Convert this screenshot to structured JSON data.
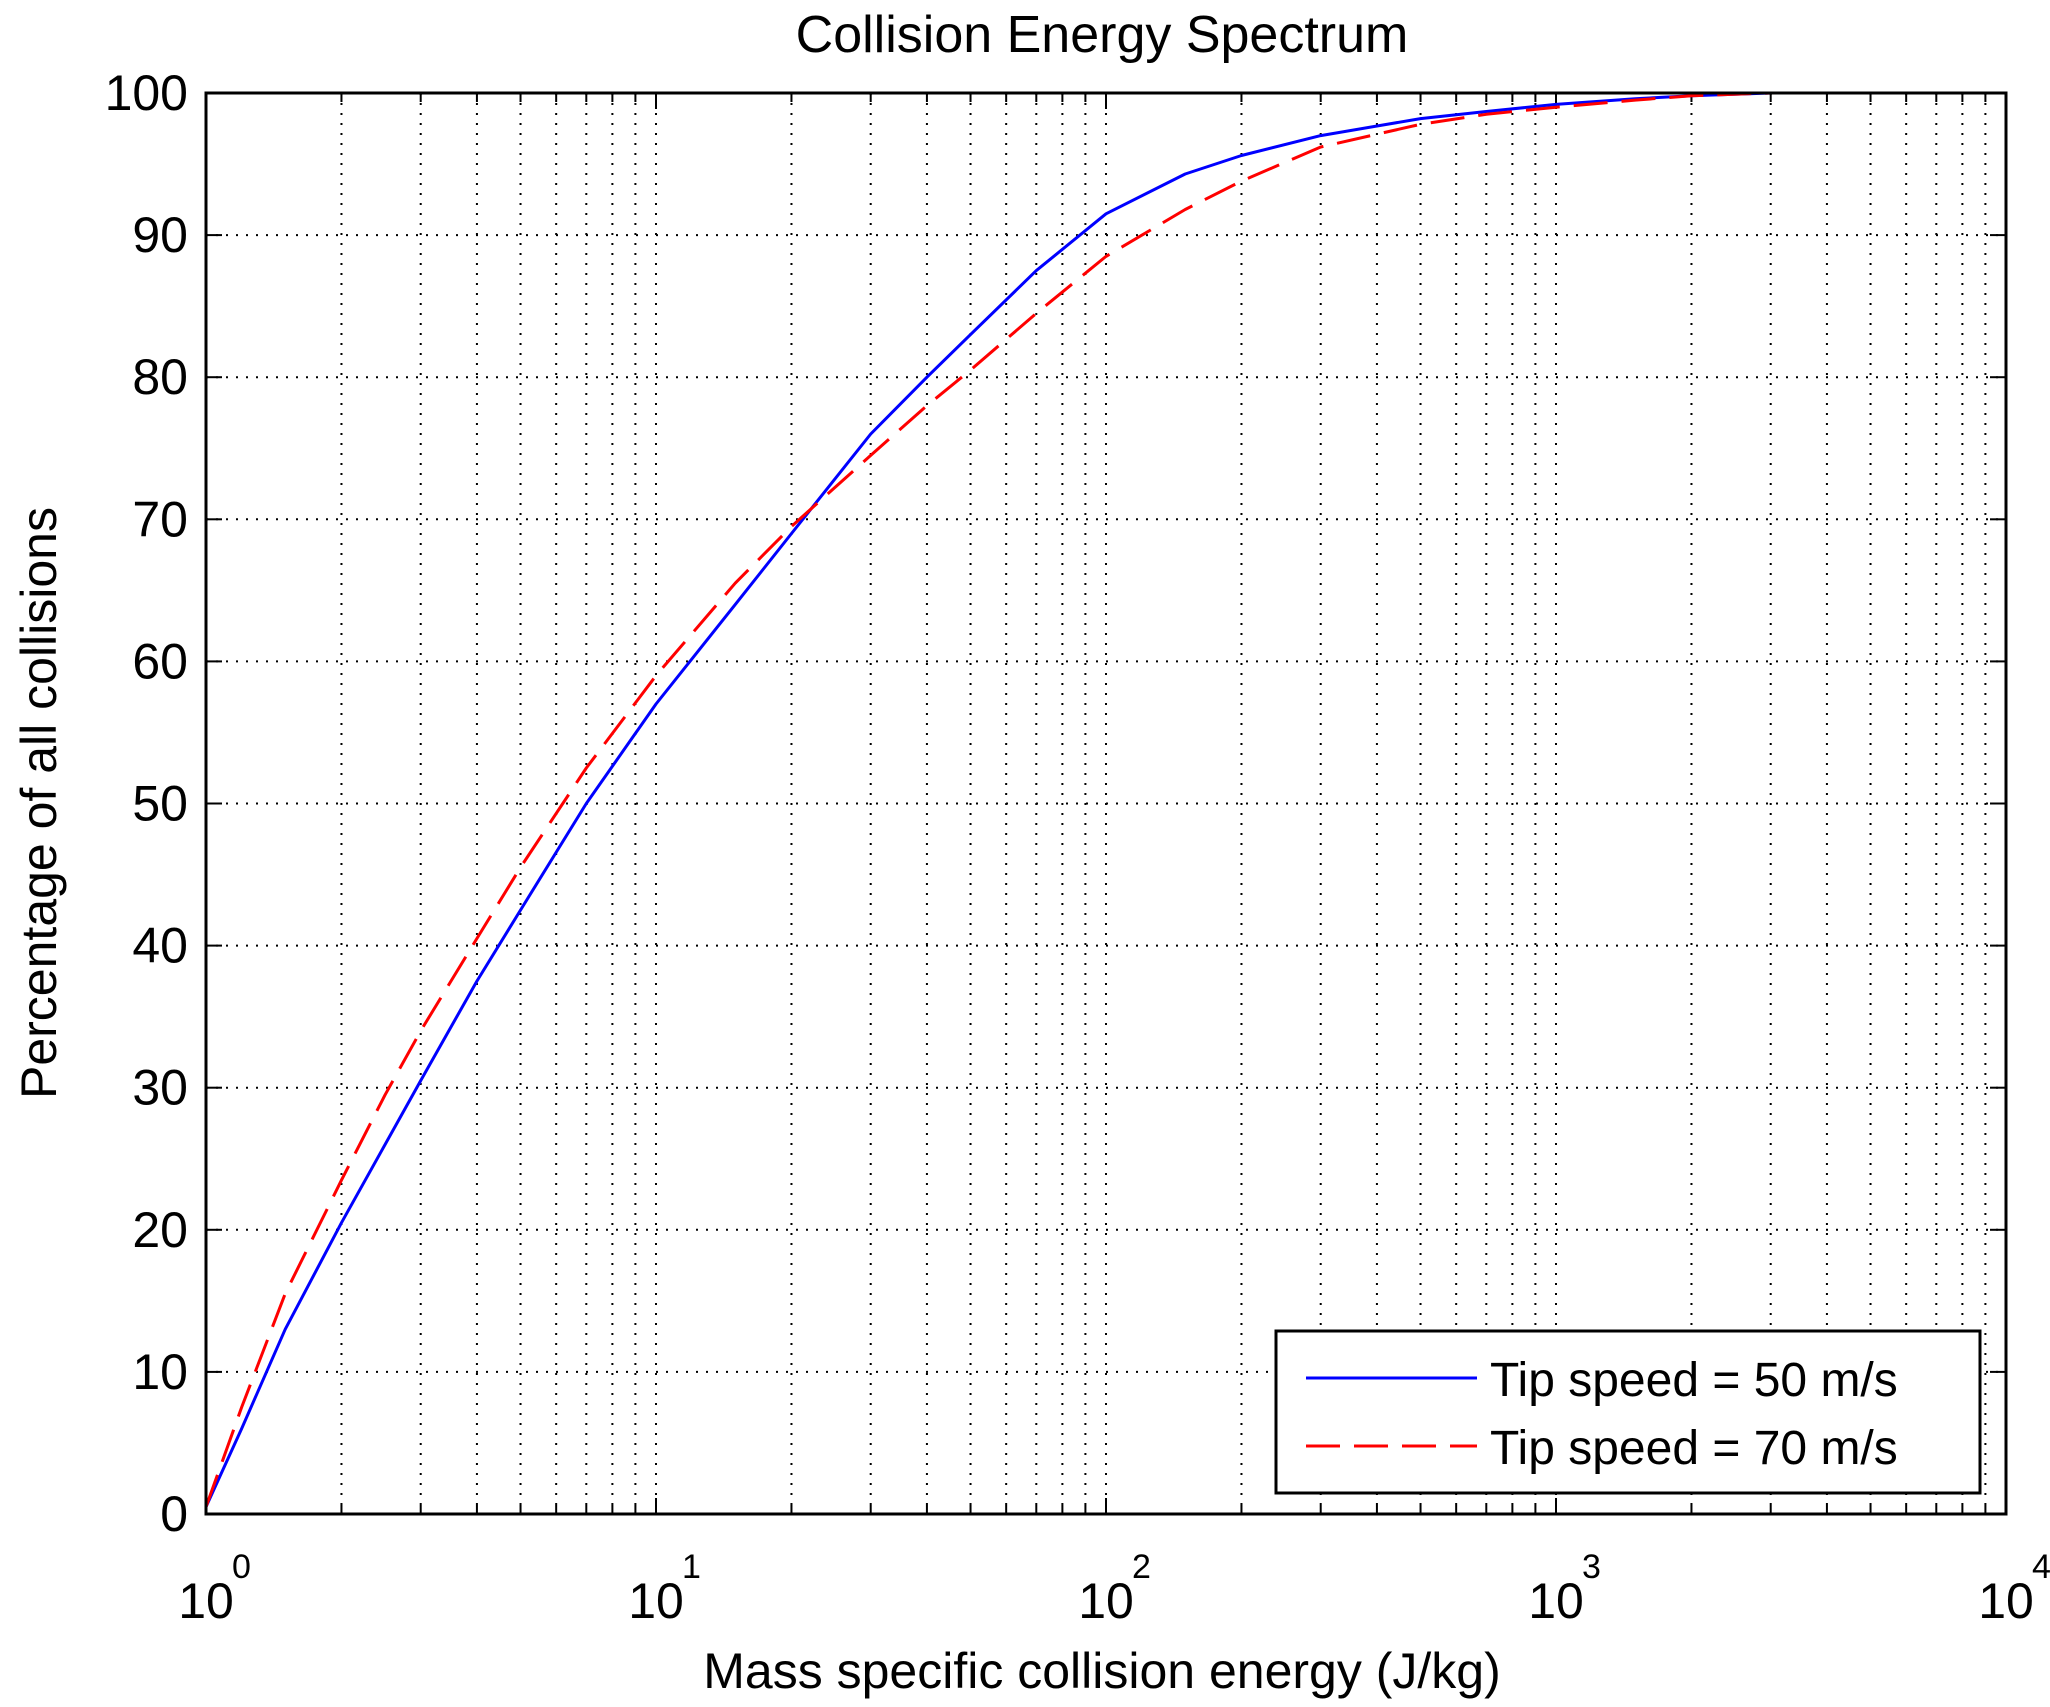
{
  "chart_data": {
    "type": "line",
    "title": "Collision Energy Spectrum",
    "xlabel": "Mass specific collision energy (J/kg)",
    "ylabel": "Percentage of all collisions",
    "xscale": "log",
    "xlim": [
      1,
      10000
    ],
    "ylim": [
      0,
      100
    ],
    "grid": true,
    "legend_position": "bottom-right",
    "x_ticks": [
      {
        "base": "10",
        "exp": "0",
        "value": 1
      },
      {
        "base": "10",
        "exp": "1",
        "value": 10
      },
      {
        "base": "10",
        "exp": "2",
        "value": 100
      },
      {
        "base": "10",
        "exp": "3",
        "value": 1000
      },
      {
        "base": "10",
        "exp": "4",
        "value": 10000
      }
    ],
    "y_ticks": [
      {
        "label": "0",
        "value": 0
      },
      {
        "label": "10",
        "value": 10
      },
      {
        "label": "20",
        "value": 20
      },
      {
        "label": "30",
        "value": 30
      },
      {
        "label": "40",
        "value": 40
      },
      {
        "label": "50",
        "value": 50
      },
      {
        "label": "60",
        "value": 60
      },
      {
        "label": "70",
        "value": 70
      },
      {
        "label": "80",
        "value": 80
      },
      {
        "label": "90",
        "value": 90
      },
      {
        "label": "100",
        "value": 100
      }
    ],
    "series": [
      {
        "name": "Tip speed = 50 m/s",
        "color": "#0000ff",
        "style": "solid",
        "x": [
          1,
          1.2,
          1.5,
          2,
          2.5,
          3,
          4,
          5,
          7,
          10,
          15,
          20,
          30,
          40,
          50,
          70,
          100,
          150,
          200,
          300,
          500,
          700,
          1000,
          1500,
          2000,
          3000
        ],
        "y": [
          0.5,
          6,
          13,
          20.5,
          26,
          30.5,
          37.5,
          42.5,
          50,
          57,
          64,
          69,
          76,
          80,
          83,
          87.5,
          91.5,
          94.3,
          95.6,
          97,
          98.2,
          98.7,
          99.2,
          99.6,
          99.8,
          100
        ]
      },
      {
        "name": "Tip speed = 70 m/s",
        "color": "#ff0000",
        "style": "dashed",
        "x": [
          1,
          1.2,
          1.5,
          2,
          2.5,
          3,
          4,
          5,
          7,
          10,
          15,
          20,
          30,
          40,
          50,
          70,
          100,
          150,
          200,
          300,
          500,
          700,
          1000,
          1500,
          2000,
          3000
        ],
        "y": [
          0.5,
          7.5,
          15.5,
          23.5,
          29.5,
          34,
          40.5,
          45.5,
          52.5,
          59,
          65.5,
          69.5,
          74.5,
          78,
          80.5,
          84.5,
          88.5,
          91.8,
          93.8,
          96.2,
          97.8,
          98.5,
          99,
          99.5,
          99.8,
          100
        ]
      }
    ]
  }
}
